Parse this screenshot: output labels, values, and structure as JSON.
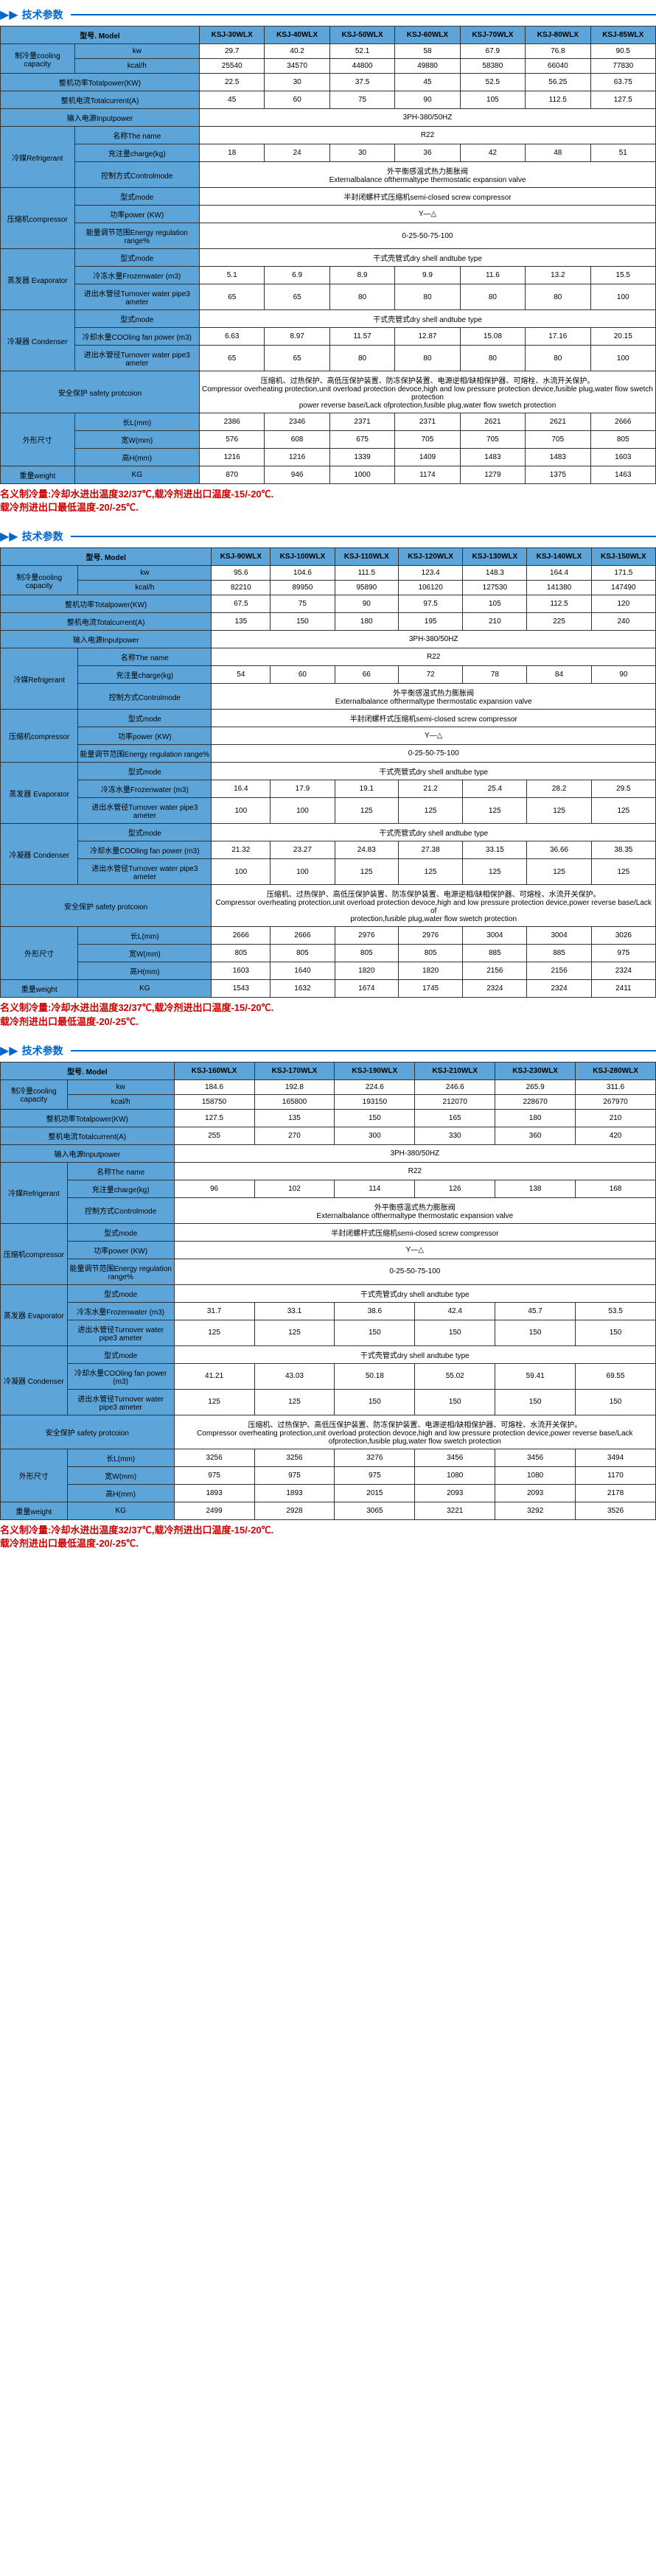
{
  "sectionTitle": "技术参数",
  "tables": [
    {
      "models": [
        "KSJ-30WLX",
        "KSJ-40WLX",
        "KSJ-50WLX",
        "KSJ-60WLX",
        "KSJ-70WLX",
        "KSJ-80WLX",
        "KSJ-85WLX"
      ],
      "labels": {
        "model": "型号. Model",
        "cooling": "制冷量cooling capacity",
        "kw": "kw",
        "kcal": "kcal/h",
        "totalPower": "整机功率Totalpower(KW)",
        "totalCurrent": "整机电流Totalcurrent(A)",
        "inputPower": "输入电源Inputpower",
        "refrigerant": "冷媒Refrigerant",
        "name": "名称The name",
        "charge": "充注量charge(kg)",
        "controlMode": "控制方式Controlmode",
        "compressor": "压缩机compressor",
        "modeType": "型式mode",
        "power": "功率power (KW)",
        "energy": "能量调节范围Energy regulation range%",
        "evaporator": "蒸发器 Evaporator",
        "frozenWater": "冷冻水量Frozenwater (m3)",
        "turnover": "进出水管径Turnover water pipe3 ameter",
        "condenser": "冷凝器 Condenser",
        "coolingFan": "冷却水量COOling fan power (m3)",
        "safety": "安全保护 safety protcoion",
        "dimensions": "外形尺寸",
        "length": "长L(mm)",
        "width": "宽W(mm)",
        "height": "高H(mm)",
        "weight": "重量weight",
        "kg": "KG"
      },
      "data": {
        "kw": [
          "29.7",
          "40.2",
          "52.1",
          "58",
          "67.9",
          "76.8",
          "90.5"
        ],
        "kcal": [
          "25540",
          "34570",
          "44800",
          "49880",
          "58380",
          "66040",
          "77830"
        ],
        "totalPower": [
          "22.5",
          "30",
          "37.5",
          "45",
          "52.5",
          "56.25",
          "63.75"
        ],
        "totalCurrent": [
          "45",
          "60",
          "75",
          "90",
          "105",
          "112.5",
          "127.5"
        ],
        "inputPower": "3PH-380/50HZ",
        "refrigerantName": "R22",
        "charge": [
          "18",
          "24",
          "30",
          "36",
          "42",
          "48",
          "51"
        ],
        "controlMode": "外平衡感温式热力膨胀阀\nExternalbalance ofthermaltype thermostatic expansion valve",
        "compressorMode": "半封闭螺杆式压缩机semi-closed screw compressor",
        "compressorPower": "Y—△",
        "energy": "0-25-50-75-100",
        "evaporatorMode": "干式壳管式dry shell andtube type",
        "frozenWater": [
          "5.1",
          "6.9",
          "8.9",
          "9.9",
          "11.6",
          "13.2",
          "15.5"
        ],
        "evapTurnover": [
          "65",
          "65",
          "80",
          "80",
          "80",
          "80",
          "100"
        ],
        "condenserMode": "干式壳管式dry shell andtube type",
        "coolingFan": [
          "6.63",
          "8.97",
          "11.57",
          "12.87",
          "15.08",
          "17.16",
          "20.15"
        ],
        "condTurnover": [
          "65",
          "65",
          "80",
          "80",
          "80",
          "80",
          "100"
        ],
        "safety": "压缩机、过热保护、高低压保护装置、防冻保护装置、电源逆相/缺相保护器、可熔栓、水流开关保护。\nCompressor overheating protection,unit overload protection devoce,high and low pressure protection device,fusible plug,water flow swetch protection\npower reverse base/Lack ofprotection,fusible plug,water flow swetch protection",
        "length": [
          "2386",
          "2346",
          "2371",
          "2371",
          "2621",
          "2621",
          "2666"
        ],
        "width": [
          "576",
          "608",
          "675",
          "705",
          "705",
          "705",
          "805"
        ],
        "height": [
          "1216",
          "1216",
          "1339",
          "1409",
          "1483",
          "1483",
          "1603"
        ],
        "weight": [
          "870",
          "946",
          "1000",
          "1174",
          "1279",
          "1375",
          "1463"
        ]
      }
    },
    {
      "models": [
        "KSJ-90WLX",
        "KSJ-100WLX",
        "KSJ-110WLX",
        "KSJ-120WLX",
        "KSJ-130WLX",
        "KSJ-140WLX",
        "KSJ-150WLX"
      ],
      "data": {
        "kw": [
          "95.6",
          "104.6",
          "111.5",
          "123.4",
          "148.3",
          "164.4",
          "171.5"
        ],
        "kcal": [
          "82210",
          "89950",
          "95890",
          "106120",
          "127530",
          "141380",
          "147490"
        ],
        "totalPower": [
          "67.5",
          "75",
          "90",
          "97.5",
          "105",
          "112.5",
          "120"
        ],
        "totalCurrent": [
          "135",
          "150",
          "180",
          "195",
          "210",
          "225",
          "240"
        ],
        "inputPower": "3PH-380/50HZ",
        "refrigerantName": "R22",
        "charge": [
          "54",
          "60",
          "66",
          "72",
          "78",
          "84",
          "90"
        ],
        "controlMode": "外平衡感温式热力膨胀阀\nExternalbalance ofthermaltype thermostatic expansion valve",
        "compressorMode": "半封闭螺杆式压缩机semi-closed screw compressor",
        "compressorPower": "Y—△",
        "energy": "0-25-50-75-100",
        "evaporatorMode": "干式壳管式dry shell andtube type",
        "frozenWater": [
          "16.4",
          "17.9",
          "19.1",
          "21.2",
          "25.4",
          "28.2",
          "29.5"
        ],
        "evapTurnover": [
          "100",
          "100",
          "125",
          "125",
          "125",
          "125",
          "125"
        ],
        "condenserMode": "干式壳管式dry shell andtube type",
        "coolingFan": [
          "21.32",
          "23.27",
          "24.83",
          "27.38",
          "33.15",
          "36.66",
          "38.35"
        ],
        "condTurnover": [
          "100",
          "100",
          "125",
          "125",
          "125",
          "125",
          "125"
        ],
        "safety": "压缩机、过热保护、高低压保护装置、防冻保护装置、电源逆相/缺相保护器、可熔栓、水流开关保护。\nCompressor overheating protection,unit overload protection devoce,high and low pressure protection device,power reverse base/Lack of\nprotection,fusible plug,water flow swetch protection",
        "length": [
          "2666",
          "2666",
          "2976",
          "2976",
          "3004",
          "3004",
          "3026"
        ],
        "width": [
          "805",
          "805",
          "805",
          "805",
          "885",
          "885",
          "975"
        ],
        "height": [
          "1603",
          "1640",
          "1820",
          "1820",
          "2156",
          "2156",
          "2324"
        ],
        "weight": [
          "1543",
          "1632",
          "1674",
          "1745",
          "2324",
          "2324",
          "2411"
        ]
      }
    },
    {
      "models": [
        "KSJ-160WLX",
        "KSJ-170WLX",
        "KSJ-190WLX",
        "KSJ-210WLX",
        "KSJ-230WLX",
        "KSJ-280WLX"
      ],
      "data": {
        "kw": [
          "184.6",
          "192.8",
          "224.6",
          "246.6",
          "265.9",
          "311.6"
        ],
        "kcal": [
          "158750",
          "165800",
          "193150",
          "212070",
          "228670",
          "267970"
        ],
        "totalPower": [
          "127.5",
          "135",
          "150",
          "165",
          "180",
          "210"
        ],
        "totalCurrent": [
          "255",
          "270",
          "300",
          "330",
          "360",
          "420"
        ],
        "inputPower": "3PH-380/50HZ",
        "refrigerantName": "R22",
        "charge": [
          "96",
          "102",
          "114",
          "126",
          "138",
          "168"
        ],
        "controlMode": "外平衡感温式热力膨胀阀\nExternalbalance ofthermaltype thermostatic expansion valve",
        "compressorMode": "半封闭螺杆式压缩机semi-closed screw compressor",
        "compressorPower": "Y—△",
        "energy": "0-25-50-75-100",
        "evaporatorMode": "干式壳管式dry shell andtube type",
        "frozenWater": [
          "31.7",
          "33.1",
          "38.6",
          "42.4",
          "45.7",
          "53.5"
        ],
        "evapTurnover": [
          "125",
          "125",
          "150",
          "150",
          "150",
          "150"
        ],
        "condenserMode": "干式壳管式dry shell andtube type",
        "coolingFan": [
          "41.21",
          "43.03",
          "50.18",
          "55.02",
          "59.41",
          "69.55"
        ],
        "condTurnover": [
          "125",
          "125",
          "150",
          "150",
          "150",
          "150"
        ],
        "safety": "压缩机、过热保护、高低压保护装置、防冻保护装置、电源逆相/缺相保护器、可熔栓、水流开关保护。\nCompressor overheating protection,unit overload protection devoce,high and low pressure protection device,power reverse base/Lack ofprotection,fusible plug,water flow swetch protection",
        "length": [
          "3256",
          "3256",
          "3276",
          "3456",
          "3456",
          "3494"
        ],
        "width": [
          "975",
          "975",
          "975",
          "1080",
          "1080",
          "1170"
        ],
        "height": [
          "1893",
          "1893",
          "2015",
          "2093",
          "2093",
          "2178"
        ],
        "weight": [
          "2499",
          "2928",
          "3065",
          "3221",
          "3292",
          "3526"
        ]
      }
    }
  ],
  "note": "名义制冷量:冷却水进出温度32/37℃,载冷剂进出口温度-15/-20℃.\n载冷剂进出口最低温度-20/-25℃."
}
